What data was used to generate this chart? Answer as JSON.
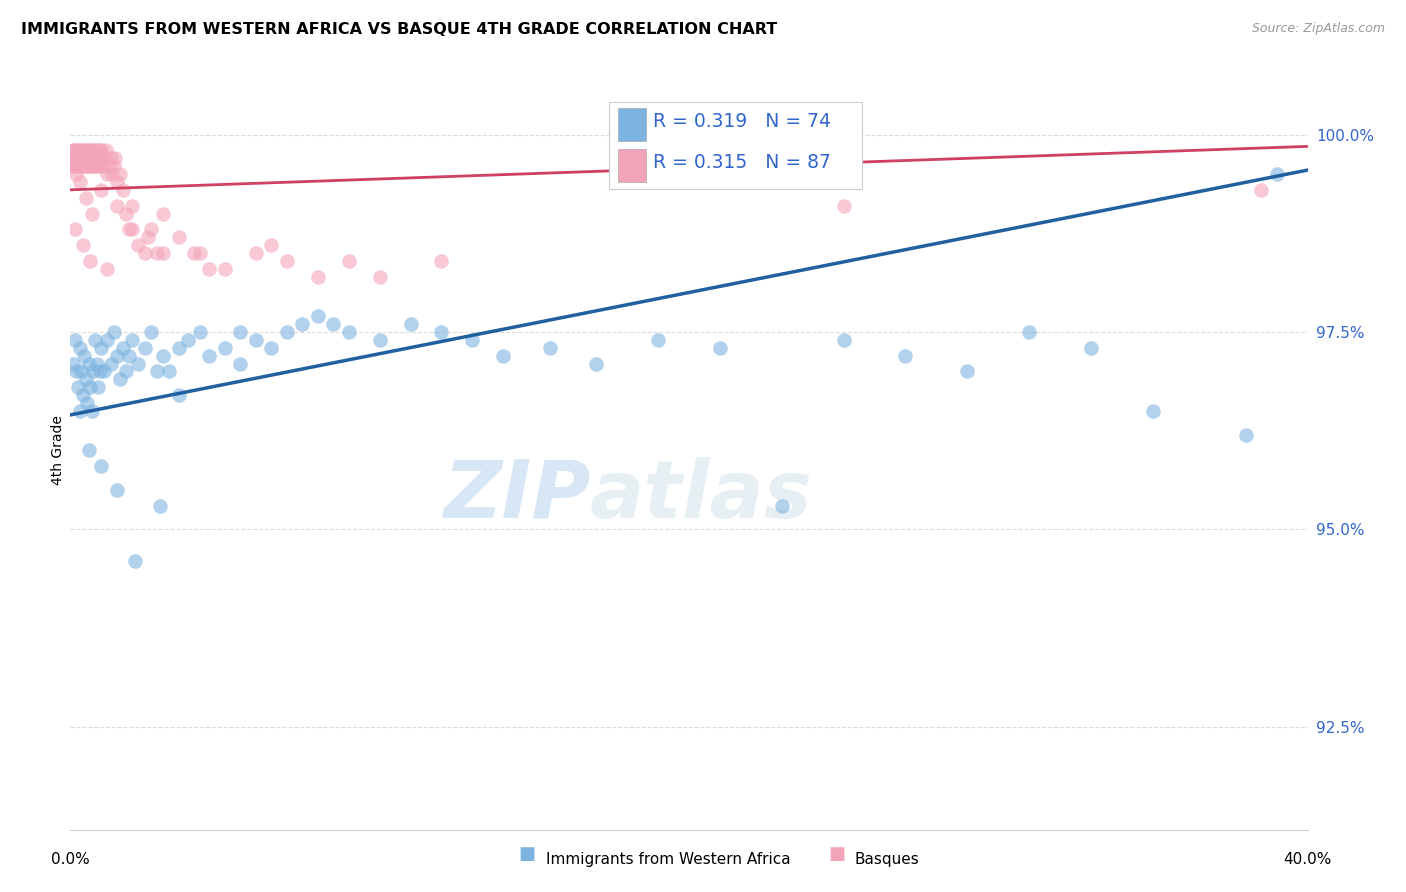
{
  "title": "IMMIGRANTS FROM WESTERN AFRICA VS BASQUE 4TH GRADE CORRELATION CHART",
  "source": "Source: ZipAtlas.com",
  "ylabel": "4th Grade",
  "yticks": [
    92.5,
    95.0,
    97.5,
    100.0
  ],
  "ytick_labels": [
    "92.5%",
    "95.0%",
    "97.5%",
    "100.0%"
  ],
  "xmin": 0.0,
  "xmax": 40.0,
  "ymin": 91.2,
  "ymax": 100.8,
  "blue_R": "0.319",
  "blue_N": "74",
  "pink_R": "0.315",
  "pink_N": "87",
  "watermark_zip": "ZIP",
  "watermark_atlas": "atlas",
  "legend_label_blue": "Immigrants from Western Africa",
  "legend_label_pink": "Basques",
  "blue_color": "#7db3e0",
  "pink_color": "#f4a4b8",
  "blue_line_color": "#2060a0",
  "pink_line_color": "#d04060",
  "blue_scatter_x": [
    0.1,
    0.15,
    0.2,
    0.25,
    0.3,
    0.35,
    0.4,
    0.45,
    0.5,
    0.55,
    0.6,
    0.65,
    0.7,
    0.75,
    0.8,
    0.85,
    0.9,
    0.95,
    1.0,
    1.1,
    1.2,
    1.3,
    1.4,
    1.5,
    1.6,
    1.7,
    1.8,
    1.9,
    2.0,
    2.2,
    2.4,
    2.6,
    2.8,
    3.0,
    3.2,
    3.5,
    3.8,
    4.2,
    4.5,
    5.0,
    5.5,
    6.0,
    6.5,
    7.0,
    7.5,
    8.0,
    9.0,
    10.0,
    11.0,
    12.0,
    13.0,
    14.0,
    15.5,
    17.0,
    19.0,
    21.0,
    23.0,
    25.0,
    27.0,
    29.0,
    31.0,
    33.0,
    35.0,
    38.0,
    0.3,
    0.6,
    1.0,
    1.5,
    2.1,
    2.9,
    3.5,
    5.5,
    8.5,
    39.0
  ],
  "blue_scatter_y": [
    97.1,
    97.4,
    97.0,
    96.8,
    97.3,
    97.0,
    96.7,
    97.2,
    96.9,
    96.6,
    97.1,
    96.8,
    96.5,
    97.0,
    97.4,
    97.1,
    96.8,
    97.0,
    97.3,
    97.0,
    97.4,
    97.1,
    97.5,
    97.2,
    96.9,
    97.3,
    97.0,
    97.2,
    97.4,
    97.1,
    97.3,
    97.5,
    97.0,
    97.2,
    97.0,
    97.3,
    97.4,
    97.5,
    97.2,
    97.3,
    97.5,
    97.4,
    97.3,
    97.5,
    97.6,
    97.7,
    97.5,
    97.4,
    97.6,
    97.5,
    97.4,
    97.2,
    97.3,
    97.1,
    97.4,
    97.3,
    95.3,
    97.4,
    97.2,
    97.0,
    97.5,
    97.3,
    96.5,
    96.2,
    96.5,
    96.0,
    95.8,
    95.5,
    94.6,
    95.3,
    96.7,
    97.1,
    97.6,
    99.5
  ],
  "pink_scatter_x": [
    0.05,
    0.08,
    0.1,
    0.12,
    0.15,
    0.17,
    0.2,
    0.22,
    0.25,
    0.28,
    0.3,
    0.32,
    0.35,
    0.38,
    0.4,
    0.42,
    0.45,
    0.48,
    0.5,
    0.52,
    0.55,
    0.58,
    0.6,
    0.62,
    0.65,
    0.68,
    0.7,
    0.72,
    0.75,
    0.78,
    0.8,
    0.82,
    0.85,
    0.88,
    0.9,
    0.92,
    0.95,
    0.98,
    1.0,
    1.05,
    1.1,
    1.15,
    1.2,
    1.25,
    1.3,
    1.35,
    1.4,
    1.45,
    1.5,
    1.6,
    1.7,
    1.8,
    1.9,
    2.0,
    2.2,
    2.4,
    2.6,
    2.8,
    3.0,
    3.5,
    4.0,
    5.0,
    6.0,
    7.0,
    8.0,
    9.0,
    0.1,
    0.2,
    0.3,
    0.5,
    0.7,
    1.0,
    1.5,
    2.0,
    3.0,
    4.5,
    6.5,
    10.0,
    12.0,
    0.15,
    0.4,
    0.65,
    1.2,
    2.5,
    4.2,
    25.0,
    38.5
  ],
  "pink_scatter_y": [
    99.7,
    99.8,
    99.6,
    99.8,
    99.7,
    99.8,
    99.6,
    99.7,
    99.8,
    99.6,
    99.7,
    99.8,
    99.6,
    99.7,
    99.8,
    99.6,
    99.7,
    99.8,
    99.6,
    99.7,
    99.8,
    99.6,
    99.7,
    99.8,
    99.6,
    99.7,
    99.8,
    99.6,
    99.7,
    99.8,
    99.6,
    99.7,
    99.8,
    99.6,
    99.7,
    99.8,
    99.6,
    99.7,
    99.8,
    99.6,
    99.7,
    99.8,
    99.5,
    99.6,
    99.7,
    99.5,
    99.6,
    99.7,
    99.4,
    99.5,
    99.3,
    99.0,
    98.8,
    99.1,
    98.6,
    98.5,
    98.8,
    98.5,
    99.0,
    98.7,
    98.5,
    98.3,
    98.5,
    98.4,
    98.2,
    98.4,
    99.6,
    99.5,
    99.4,
    99.2,
    99.0,
    99.3,
    99.1,
    98.8,
    98.5,
    98.3,
    98.6,
    98.2,
    98.4,
    98.8,
    98.6,
    98.4,
    98.3,
    98.7,
    98.5,
    99.1,
    99.3
  ],
  "blue_trendline_x": [
    0.0,
    40.0
  ],
  "blue_trendline_y": [
    96.45,
    99.55
  ],
  "pink_trendline_x": [
    0.0,
    40.0
  ],
  "pink_trendline_y": [
    99.3,
    99.85
  ],
  "grid_color": "#dddddd",
  "title_fontsize": 11.5,
  "tick_fontsize": 11,
  "ylabel_fontsize": 10,
  "source_color": "#999999",
  "tick_color": "#3366cc"
}
